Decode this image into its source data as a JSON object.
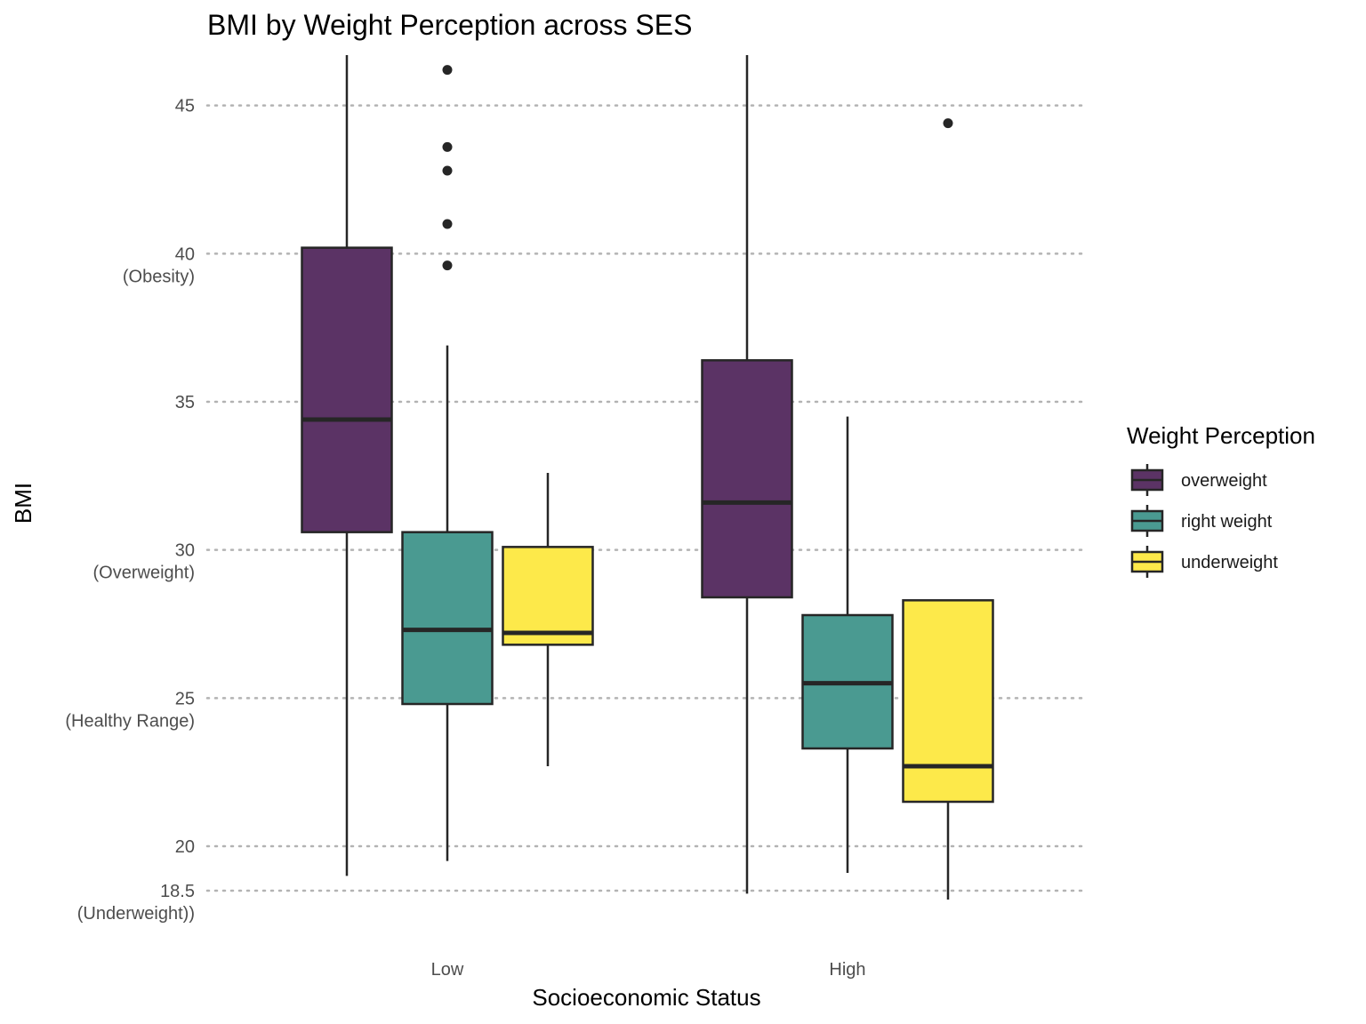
{
  "chart_data": {
    "type": "boxplot",
    "title": "BMI by Weight Perception across SES",
    "xlabel": "Socioeconomic Status",
    "ylabel": "BMI",
    "categories": [
      "Low",
      "High"
    ],
    "ylim": [
      17.3,
      46.7
    ],
    "y_ticks": [
      {
        "value": 45,
        "lines": [
          "45"
        ]
      },
      {
        "value": 40,
        "lines": [
          "40",
          "(Obesity)"
        ]
      },
      {
        "value": 35,
        "lines": [
          "35"
        ]
      },
      {
        "value": 30,
        "lines": [
          "30",
          "(Overweight)"
        ]
      },
      {
        "value": 25,
        "lines": [
          "25",
          "(Healthy Range)"
        ]
      },
      {
        "value": 20,
        "lines": [
          "20"
        ]
      },
      {
        "value": 18.5,
        "lines": [
          "18.5",
          "(Underweight))"
        ]
      }
    ],
    "grid": true,
    "legend": {
      "title": "Weight Perception",
      "placement": "right",
      "entries": [
        {
          "name": "overweight",
          "color": "#5b3365"
        },
        {
          "name": "right weight",
          "color": "#4a9a91"
        },
        {
          "name": "underweight",
          "color": "#fde94a"
        }
      ]
    },
    "series": [
      {
        "name": "overweight",
        "color": "#5b3365",
        "boxes": [
          {
            "category": "Low",
            "whisker_low": 19.0,
            "q1": 30.6,
            "median": 34.4,
            "q3": 40.2,
            "whisker_high": 48.0,
            "outliers": []
          },
          {
            "category": "High",
            "whisker_low": 18.4,
            "q1": 28.4,
            "median": 31.6,
            "q3": 36.4,
            "whisker_high": 48.0,
            "outliers": []
          }
        ]
      },
      {
        "name": "right weight",
        "color": "#4a9a91",
        "boxes": [
          {
            "category": "Low",
            "whisker_low": 19.5,
            "q1": 24.8,
            "median": 27.3,
            "q3": 30.6,
            "whisker_high": 36.9,
            "outliers": [
              39.6,
              41.0,
              42.8,
              43.6,
              46.2
            ]
          },
          {
            "category": "High",
            "whisker_low": 19.1,
            "q1": 23.3,
            "median": 25.5,
            "q3": 27.8,
            "whisker_high": 34.5,
            "outliers": []
          }
        ]
      },
      {
        "name": "underweight",
        "color": "#fde94a",
        "boxes": [
          {
            "category": "Low",
            "whisker_low": 22.7,
            "q1": 26.8,
            "median": 27.2,
            "q3": 30.1,
            "whisker_high": 32.6,
            "outliers": []
          },
          {
            "category": "High",
            "whisker_low": 18.2,
            "q1": 21.5,
            "median": 22.7,
            "q3": 28.3,
            "whisker_high": 28.3,
            "outliers": [
              44.4
            ]
          }
        ]
      }
    ]
  }
}
